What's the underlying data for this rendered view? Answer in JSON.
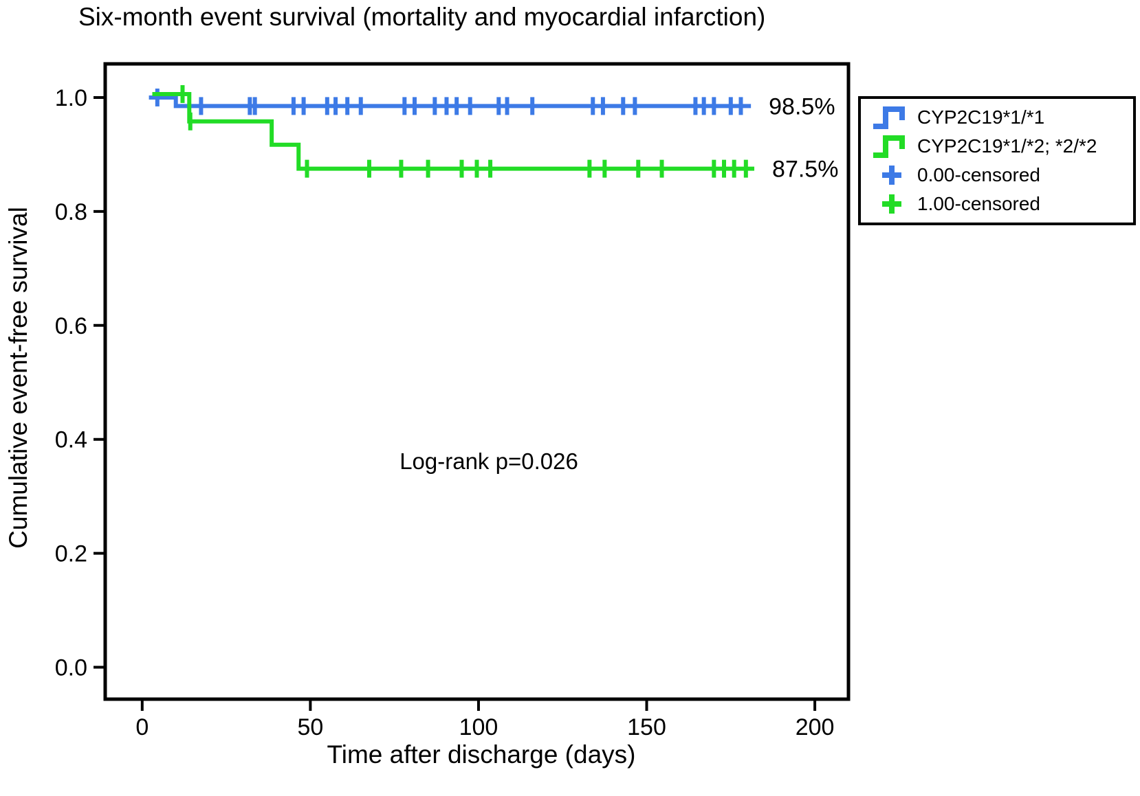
{
  "chart_data": {
    "type": "line",
    "subtype": "kaplan-meier-step-survival",
    "title": "Six-month event survival (mortality and myocardial infarction)",
    "xlabel": "Time after discharge (days)",
    "ylabel": "Cumulative event-free survival",
    "xlim": [
      -11,
      210
    ],
    "ylim": [
      -0.056,
      1.059
    ],
    "xticks": [
      0,
      50,
      100,
      150,
      200
    ],
    "xtick_labels": [
      "0",
      "50",
      "100",
      "150",
      "200"
    ],
    "yticks": [
      0.0,
      0.2,
      0.4,
      0.6,
      0.8,
      1.0
    ],
    "ytick_labels": [
      "0.0",
      "0.2",
      "0.4",
      "0.6",
      "0.8",
      "1.0"
    ],
    "grid": false,
    "annotation": {
      "text": "Log-rank p=0.026",
      "x": 103,
      "y": 0.36
    },
    "series": [
      {
        "name": "CYP2C19*1/*1",
        "color": "#3D7AE6",
        "end_label": "98.5%",
        "steps": [
          [
            2,
            1.0
          ],
          [
            10,
            0.985
          ],
          [
            181,
            0.985
          ]
        ],
        "censored": [
          [
            4.5,
            1.0
          ],
          [
            17.5,
            0.985
          ],
          [
            32,
            0.985
          ],
          [
            33.5,
            0.985
          ],
          [
            45,
            0.985
          ],
          [
            48,
            0.985
          ],
          [
            55,
            0.985
          ],
          [
            57.5,
            0.985
          ],
          [
            61,
            0.985
          ],
          [
            65,
            0.985
          ],
          [
            78,
            0.985
          ],
          [
            81,
            0.985
          ],
          [
            87,
            0.985
          ],
          [
            90.5,
            0.985
          ],
          [
            93.5,
            0.985
          ],
          [
            97.5,
            0.985
          ],
          [
            106,
            0.985
          ],
          [
            108.5,
            0.985
          ],
          [
            116,
            0.985
          ],
          [
            134,
            0.985
          ],
          [
            137,
            0.985
          ],
          [
            143,
            0.985
          ],
          [
            146.5,
            0.985
          ],
          [
            164.5,
            0.985
          ],
          [
            167,
            0.985
          ],
          [
            170,
            0.985
          ],
          [
            175,
            0.985
          ],
          [
            178,
            0.985
          ]
        ]
      },
      {
        "name": "CYP2C19*1/*2; *2/*2",
        "color": "#22DC26",
        "end_label": "87.5%",
        "steps": [
          [
            3,
            1.0
          ],
          [
            14,
            0.958
          ],
          [
            38.5,
            0.917
          ],
          [
            46.5,
            0.875
          ],
          [
            182,
            0.875
          ]
        ],
        "censored": [
          [
            12,
            1.0
          ],
          [
            14.3,
            0.958
          ],
          [
            49,
            0.875
          ],
          [
            67.5,
            0.875
          ],
          [
            77,
            0.875
          ],
          [
            85,
            0.875
          ],
          [
            95,
            0.875
          ],
          [
            99.5,
            0.875
          ],
          [
            103.5,
            0.875
          ],
          [
            133,
            0.875
          ],
          [
            137.5,
            0.875
          ],
          [
            147.5,
            0.875
          ],
          [
            154.5,
            0.875
          ],
          [
            170,
            0.875
          ],
          [
            173,
            0.875
          ],
          [
            176,
            0.875
          ],
          [
            179.5,
            0.875
          ]
        ]
      }
    ],
    "legend": {
      "position": "outside-top-right",
      "entries": [
        {
          "label": "CYP2C19*1/*1",
          "symbol": "step-line",
          "color": "#3D7AE6"
        },
        {
          "label": "CYP2C19*1/*2; *2/*2",
          "symbol": "step-line",
          "color": "#22DC26"
        },
        {
          "label": "0.00-censored",
          "symbol": "plus",
          "color": "#3D7AE6"
        },
        {
          "label": "1.00-censored",
          "symbol": "plus",
          "color": "#22DC26"
        }
      ]
    }
  }
}
